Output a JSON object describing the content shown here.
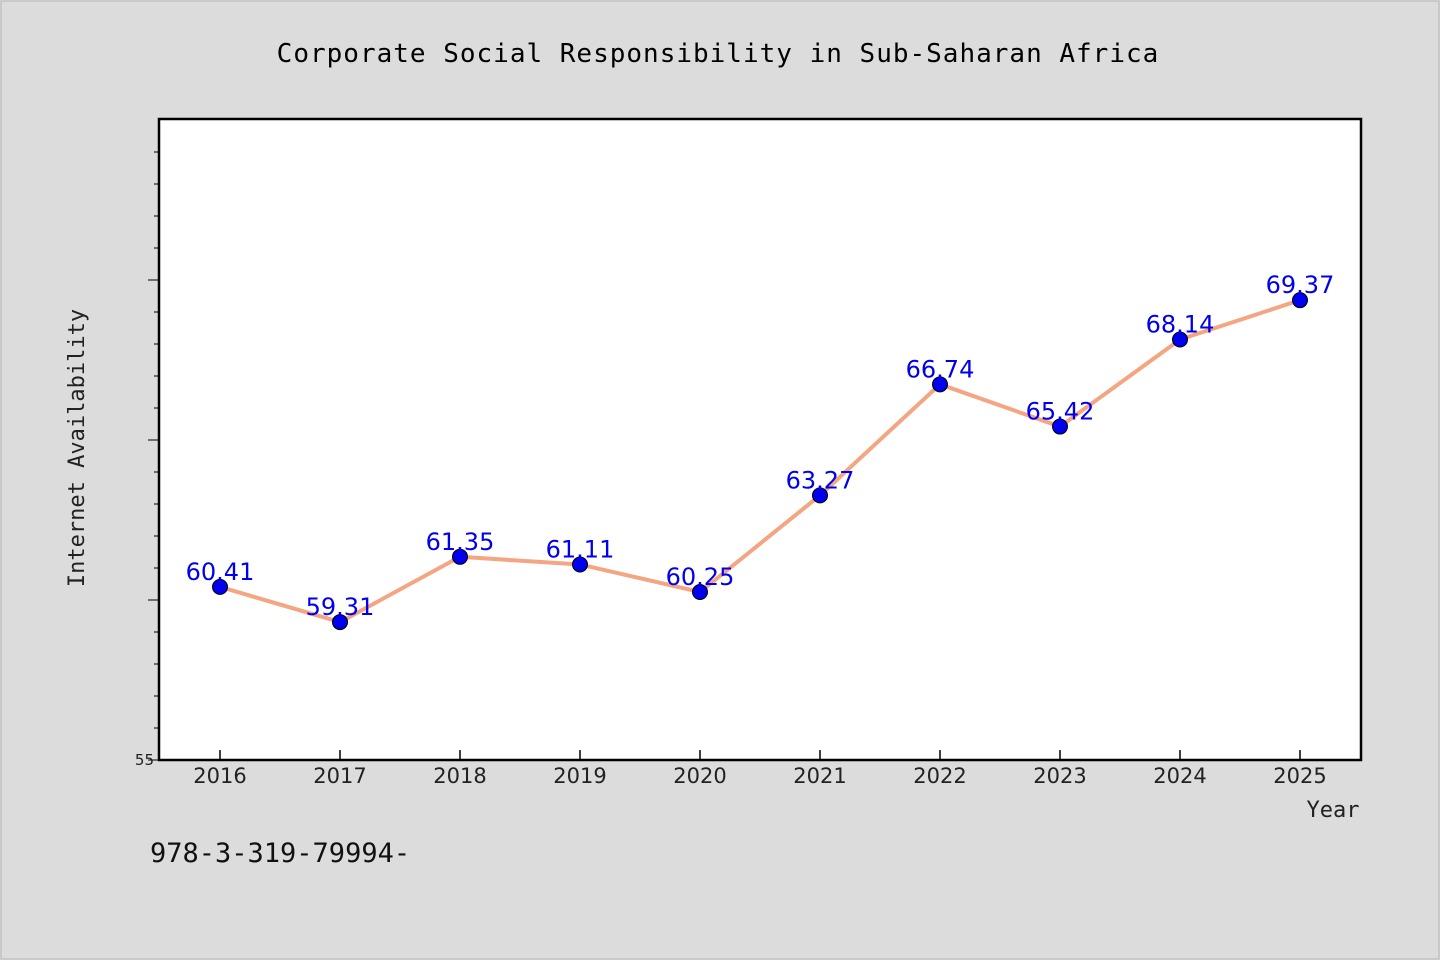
{
  "chart_data": {
    "type": "line",
    "title": "Corporate Social Responsibility in Sub-Saharan Africa",
    "xlabel": "Year",
    "ylabel": "Internet Availability",
    "x": [
      "2016",
      "2017",
      "2018",
      "2019",
      "2020",
      "2021",
      "2022",
      "2023",
      "2024",
      "2025"
    ],
    "series": [
      {
        "values": [
          60.41,
          59.31,
          61.35,
          61.11,
          60.25,
          63.27,
          66.74,
          65.42,
          68.14,
          69.37
        ],
        "data_labels": [
          "60.41",
          "59.31",
          "61.35",
          "61.11",
          "60.25",
          "63.27",
          "66.74",
          "65.42",
          "68.14",
          "69.37"
        ]
      }
    ],
    "ylim": [
      55,
      75
    ],
    "yticks_labeled": [
      "55"
    ],
    "y_minor_step": 1,
    "grid": false,
    "colors": {
      "line": "#f4a582",
      "marker": "#0000ee",
      "label": "#0000ee",
      "background": "#dcdcdc",
      "plot_bg": "#ffffff"
    }
  },
  "footer_text": "978-3-319-79994-"
}
